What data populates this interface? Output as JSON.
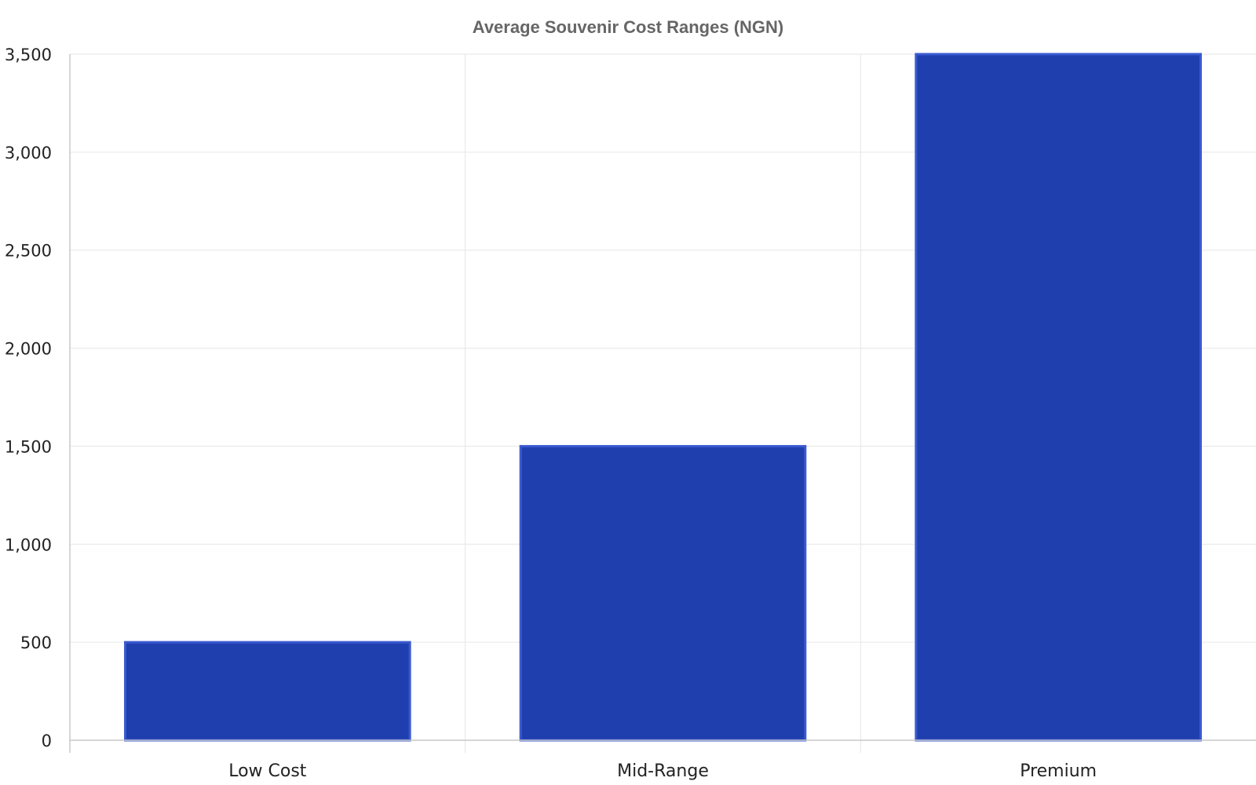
{
  "chart_data": {
    "type": "bar",
    "title": "Average Souvenir Cost Ranges (NGN)",
    "xlabel": "",
    "ylabel": "",
    "categories": [
      "Low Cost",
      "Mid-Range",
      "Premium"
    ],
    "values": [
      500,
      1500,
      3500
    ],
    "ylim": [
      0,
      3500
    ],
    "yticks": [
      0,
      500,
      1000,
      1500,
      2000,
      2500,
      3000,
      3500
    ],
    "ytick_labels": [
      "0",
      "500",
      "1,000",
      "1,500",
      "2,000",
      "2,500",
      "3,000",
      "3,500"
    ],
    "grid": true,
    "legend": "none",
    "colors": {
      "bar_fill": "#1f3fae",
      "bar_edge": "#3a5ad0",
      "grid": "#e6e6e6",
      "title": "#666666"
    }
  }
}
